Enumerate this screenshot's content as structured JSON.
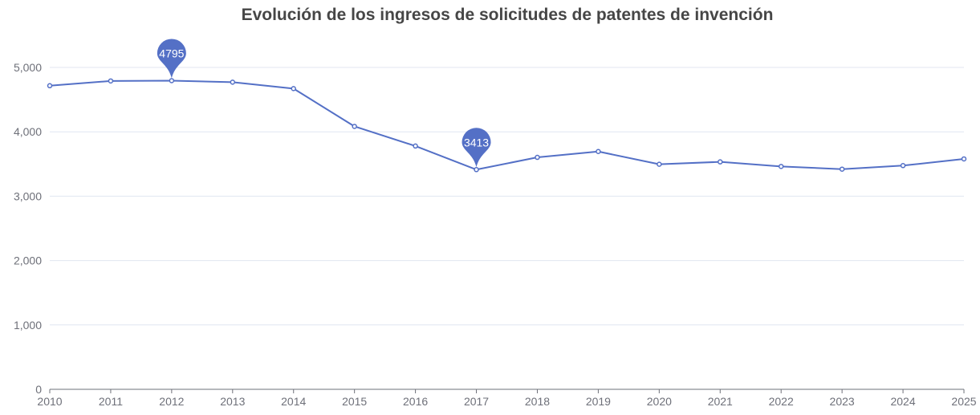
{
  "chart_data": {
    "type": "line",
    "title": "Evolución de los ingresos de solicitudes de patentes de invención",
    "xlabel": "",
    "ylabel": "",
    "categories": [
      "2010",
      "2011",
      "2012",
      "2013",
      "2014",
      "2015",
      "2016",
      "2017",
      "2018",
      "2019",
      "2020",
      "2021",
      "2022",
      "2023",
      "2024",
      "2025"
    ],
    "series": [
      {
        "values": [
          4716,
          4790,
          4795,
          4771,
          4671,
          4084,
          3779,
          3413,
          3603,
          3694,
          3496,
          3533,
          3462,
          3420,
          3475,
          3579
        ],
        "color": "#5470c6"
      }
    ],
    "markers": [
      {
        "type": "max",
        "category": "2012",
        "label": "4795"
      },
      {
        "type": "min",
        "category": "2017",
        "label": "3413"
      }
    ],
    "ylim": [
      0,
      5000
    ],
    "yticks": [
      0,
      1000,
      2000,
      3000,
      4000,
      5000
    ],
    "ytick_labels": [
      "0",
      "1,000",
      "2,000",
      "3,000",
      "4,000",
      "5,000"
    ],
    "grid": true,
    "legend": "none"
  }
}
